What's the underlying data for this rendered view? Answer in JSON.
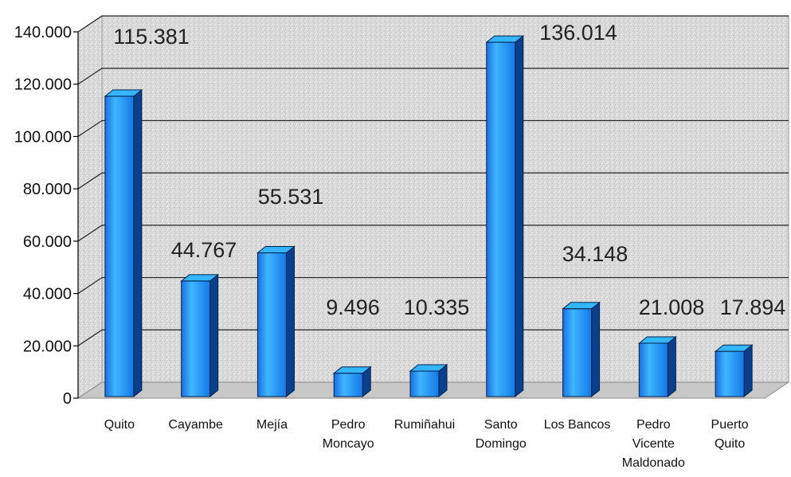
{
  "chart_data": {
    "type": "bar",
    "style": "3d-column",
    "categories": [
      [
        "Quito"
      ],
      [
        "Cayambe"
      ],
      [
        "Mejía"
      ],
      [
        "Pedro",
        "Moncayo"
      ],
      [
        "Rumiñahui"
      ],
      [
        "Santo",
        "Domingo"
      ],
      [
        "Los Bancos"
      ],
      [
        "Pedro",
        "Vicente",
        "Maldonado"
      ],
      [
        "Puerto",
        "Quito"
      ]
    ],
    "values": [
      115381,
      44767,
      55531,
      9496,
      10335,
      136014,
      34148,
      21008,
      17894
    ],
    "data_labels": [
      "115.381",
      "44.767",
      "55.531",
      "9.496",
      "10.335",
      "136.014",
      "34.148",
      "21.008",
      "17.894"
    ],
    "yticks": [
      0,
      20000,
      40000,
      60000,
      80000,
      100000,
      120000,
      140000
    ],
    "ytick_labels": [
      "0",
      "20.000",
      "40.000",
      "60.000",
      "80.000",
      "100.000",
      "120.000",
      "140.000"
    ],
    "ylim": [
      0,
      140000
    ],
    "grid": true,
    "legend": "none",
    "colors": {
      "bar_front": "#1e90ff",
      "bar_side": "#0a3f8c",
      "bar_top": "#33b5ff",
      "wall": "#dcdcdc",
      "floor": "#c8c8c8",
      "gridline": "#222222"
    }
  }
}
